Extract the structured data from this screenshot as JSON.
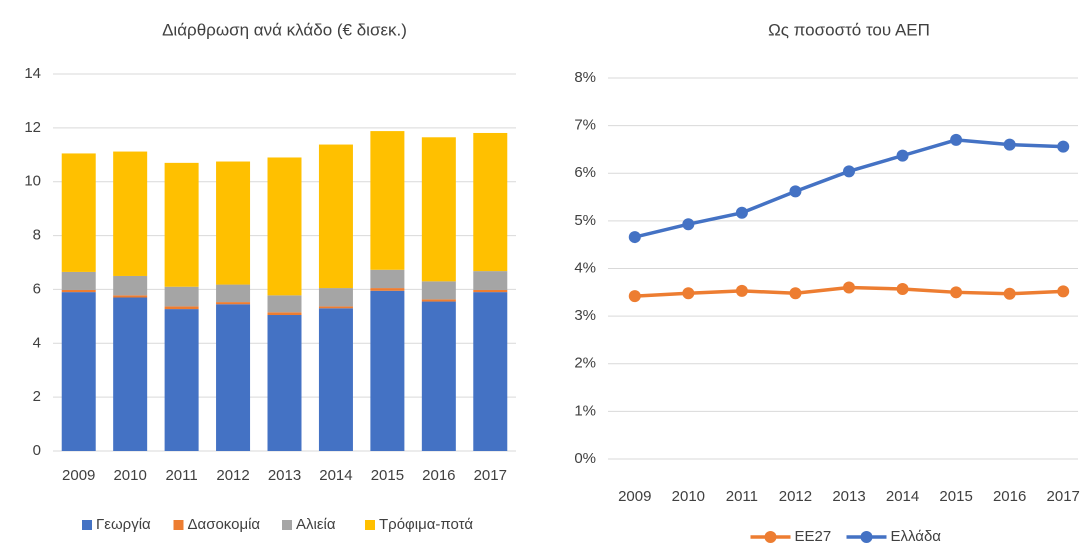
{
  "chart_data": [
    {
      "type": "stacked_bar",
      "title": "Διάρθρωση  ανά κλάδο (€ δισεκ.)",
      "categories": [
        "2009",
        "2010",
        "2011",
        "2012",
        "2013",
        "2014",
        "2015",
        "2016",
        "2017"
      ],
      "series": [
        {
          "name": "Γεωργία",
          "color": "#4472c4",
          "values": [
            5.9,
            5.7,
            5.27,
            5.45,
            5.05,
            5.3,
            5.95,
            5.55,
            5.9
          ]
        },
        {
          "name": "Δασοκομία",
          "color": "#ed7d31",
          "values": [
            0.08,
            0.08,
            0.1,
            0.08,
            0.1,
            0.07,
            0.1,
            0.08,
            0.08
          ]
        },
        {
          "name": "Αλιεία",
          "color": "#a5a5a5",
          "values": [
            0.67,
            0.72,
            0.73,
            0.65,
            0.63,
            0.68,
            0.68,
            0.67,
            0.7
          ]
        },
        {
          "name": "Τρόφιμα-ποτά",
          "color": "#ffc000",
          "values": [
            4.4,
            4.62,
            4.6,
            4.57,
            5.12,
            5.33,
            5.15,
            5.35,
            5.13
          ]
        }
      ],
      "ylim": [
        0,
        14
      ],
      "yticks": [
        0,
        2,
        4,
        6,
        8,
        10,
        12,
        14
      ],
      "grid": true,
      "legend": "bottom"
    },
    {
      "type": "line",
      "title": "Ως ποσοστό του ΑΕΠ",
      "categories": [
        "2009",
        "2010",
        "2011",
        "2012",
        "2013",
        "2014",
        "2015",
        "2016",
        "2017"
      ],
      "series": [
        {
          "name": "ΕΕ27",
          "color": "#ed7d31",
          "values": [
            3.42,
            3.48,
            3.53,
            3.48,
            3.6,
            3.57,
            3.5,
            3.47,
            3.52
          ]
        },
        {
          "name": "Ελλάδα",
          "color": "#4472c4",
          "values": [
            4.66,
            4.93,
            5.17,
            5.62,
            6.04,
            6.37,
            6.7,
            6.6,
            6.56
          ]
        }
      ],
      "ylim": [
        0,
        8
      ],
      "yticks": [
        {
          "value": 0,
          "label": "0%"
        },
        {
          "value": 1,
          "label": "1%"
        },
        {
          "value": 2,
          "label": "2%"
        },
        {
          "value": 3,
          "label": "3%"
        },
        {
          "value": 4,
          "label": "4%"
        },
        {
          "value": 5,
          "label": "5%"
        },
        {
          "value": 6,
          "label": "6%"
        },
        {
          "value": 7,
          "label": "7%"
        },
        {
          "value": 8,
          "label": "8%"
        }
      ],
      "grid": true,
      "legend": "bottom"
    }
  ]
}
